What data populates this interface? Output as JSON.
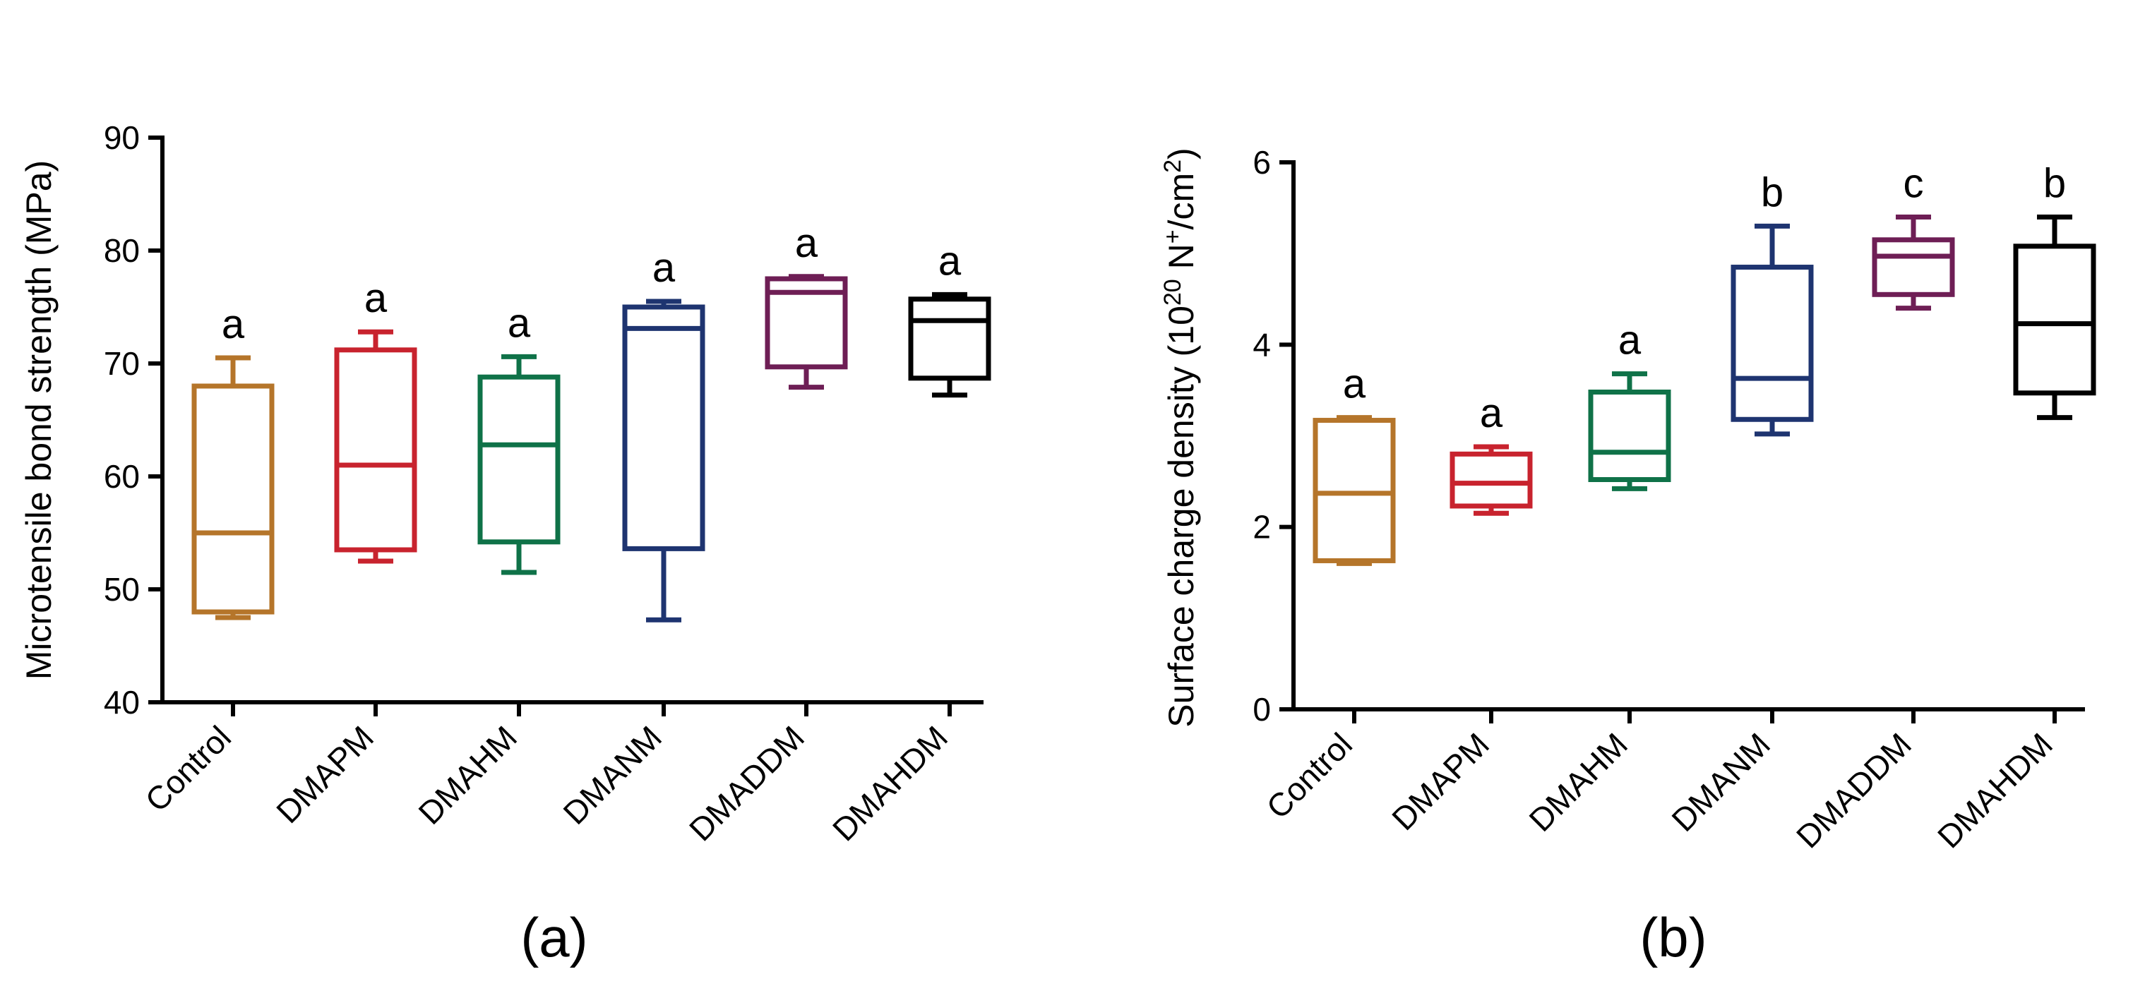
{
  "chart_data": [
    {
      "type": "box",
      "panel_label": "(a)",
      "title": "",
      "xlabel": "",
      "ylabel": "Microtensile bond strength (MPa)",
      "ylim": [
        40,
        90
      ],
      "yticks": [
        40,
        50,
        60,
        70,
        80,
        90
      ],
      "categories": [
        "Control",
        "DMAPM",
        "DMAHM",
        "DMANM",
        "DMADDM",
        "DMAHDM"
      ],
      "colors": [
        "#B5752A",
        "#C8232E",
        "#0F7248",
        "#1E3470",
        "#6E1E55",
        "#000000"
      ],
      "boxes": [
        {
          "min": 47.5,
          "q1": 48,
          "median": 55,
          "q3": 68,
          "max": 70.5,
          "letter": "a"
        },
        {
          "min": 52.5,
          "q1": 53.5,
          "median": 61,
          "q3": 71.2,
          "max": 72.8,
          "letter": "a"
        },
        {
          "min": 51.5,
          "q1": 54.2,
          "median": 62.8,
          "q3": 68.8,
          "max": 70.6,
          "letter": "a"
        },
        {
          "min": 47.3,
          "q1": 53.6,
          "median": 73.1,
          "q3": 75,
          "max": 75.5,
          "letter": "a"
        },
        {
          "min": 67.9,
          "q1": 69.7,
          "median": 76.3,
          "q3": 77.5,
          "max": 77.7,
          "letter": "a"
        },
        {
          "min": 67.2,
          "q1": 68.7,
          "median": 73.8,
          "q3": 75.7,
          "max": 76.1,
          "letter": "a"
        }
      ]
    },
    {
      "type": "box",
      "panel_label": "(b)",
      "title": "",
      "xlabel": "",
      "ylabel": "Surface charge density (10",
      "ylabel_sup1": "20",
      "ylabel_mid": " N",
      "ylabel_sup2": "+",
      "ylabel_mid2": "/cm",
      "ylabel_sup3": "2",
      "ylabel_end": ")",
      "ylim": [
        0,
        6
      ],
      "yticks": [
        0,
        2,
        4,
        6
      ],
      "categories": [
        "Control",
        "DMAPM",
        "DMAHM",
        "DMANM",
        "DMADDM",
        "DMAHDM"
      ],
      "colors": [
        "#B5752A",
        "#C8232E",
        "#0F7248",
        "#1E3470",
        "#6E1E55",
        "#000000"
      ],
      "boxes": [
        {
          "min": 1.6,
          "q1": 1.63,
          "median": 2.37,
          "q3": 3.17,
          "max": 3.2,
          "letter": "a"
        },
        {
          "min": 2.15,
          "q1": 2.23,
          "median": 2.48,
          "q3": 2.8,
          "max": 2.88,
          "letter": "a"
        },
        {
          "min": 2.42,
          "q1": 2.52,
          "median": 2.82,
          "q3": 3.48,
          "max": 3.68,
          "letter": "a"
        },
        {
          "min": 3.02,
          "q1": 3.18,
          "median": 3.63,
          "q3": 4.85,
          "max": 5.3,
          "letter": "b"
        },
        {
          "min": 4.4,
          "q1": 4.55,
          "median": 4.97,
          "q3": 5.15,
          "max": 5.4,
          "letter": "c"
        },
        {
          "min": 3.2,
          "q1": 3.47,
          "median": 4.23,
          "q3": 5.08,
          "max": 5.4,
          "letter": "b"
        }
      ]
    }
  ]
}
